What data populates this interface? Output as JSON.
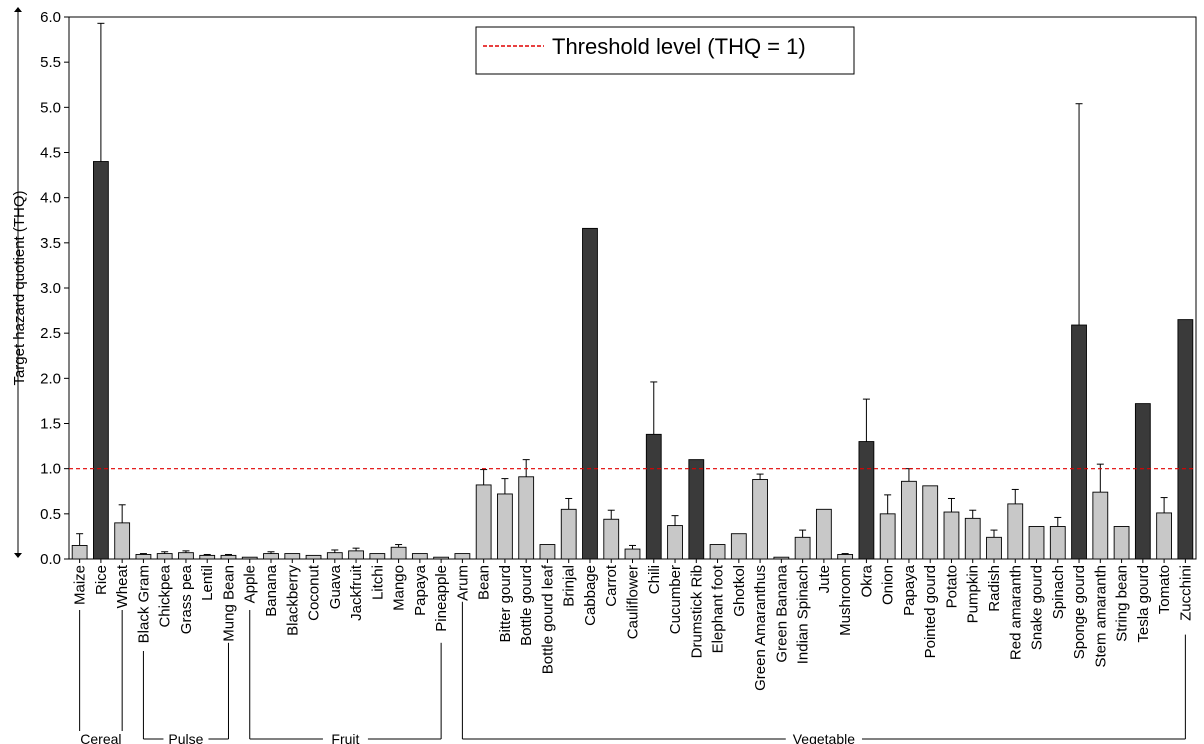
{
  "chart_data": {
    "type": "bar",
    "ylabel": "Target hazard quotient (THQ)",
    "ylim": [
      0,
      6
    ],
    "yticks": [
      "0.0",
      "0.5",
      "1.0",
      "1.5",
      "2.0",
      "2.5",
      "3.0",
      "3.5",
      "4.0",
      "4.5",
      "5.0",
      "5.5",
      "6.0"
    ],
    "threshold": {
      "value": 1.0,
      "label": "Threshold level (THQ = 1)",
      "color": "#e00000"
    },
    "legend_position": "top-center",
    "colors": {
      "above_threshold": "#3a3a3a",
      "below_threshold": "#c8c8c8"
    },
    "categories": [
      "Maize",
      "Rice",
      "Wheat",
      "Black Gram",
      "Chickpea",
      "Grass pea",
      "Lentil",
      "Mung Bean",
      "Apple",
      "Banana",
      "Blackberry",
      "Coconut",
      "Guava",
      "Jackfruit",
      "Litchi",
      "Mango",
      "Papaya",
      "Pineapple",
      "Arum",
      "Bean",
      "Bitter gourd",
      "Bottle gourd",
      "Bottle gourd leaf",
      "Brinjal",
      "Cabbage",
      "Carrot",
      "Cauliflower",
      "Chili",
      "Cucumber",
      "Drumstick Rib",
      "Elephant foot",
      "Ghotkol",
      "Green Amaranthus",
      "Green Banana",
      "Indian Spinach",
      "Jute",
      "Mushroom",
      "Okra",
      "Onion",
      "Papaya",
      "Pointed gourd",
      "Potato",
      "Pumpkin",
      "Radish",
      "Red amaranth",
      "Snake gourd",
      "Spinach",
      "Sponge gourd",
      "Stem amaranth",
      "String bean",
      "Tesla gourd",
      "Tomato",
      "Zucchini"
    ],
    "values": [
      0.15,
      4.4,
      0.4,
      0.05,
      0.06,
      0.07,
      0.04,
      0.04,
      0.02,
      0.06,
      0.06,
      0.04,
      0.07,
      0.09,
      0.06,
      0.13,
      0.06,
      0.02,
      0.06,
      0.82,
      0.72,
      0.91,
      0.16,
      0.55,
      3.66,
      0.44,
      0.11,
      1.38,
      0.37,
      1.1,
      0.16,
      0.28,
      0.88,
      0.02,
      0.24,
      0.55,
      0.05,
      1.3,
      0.5,
      0.86,
      0.81,
      0.52,
      0.45,
      0.24,
      0.61,
      0.36,
      0.36,
      2.59,
      0.74,
      0.36,
      1.72,
      0.51,
      2.65
    ],
    "errors": [
      0.13,
      1.53,
      0.2,
      0.01,
      0.02,
      0.02,
      0.01,
      0.01,
      0,
      0.02,
      0,
      0,
      0.03,
      0.03,
      0,
      0.03,
      0,
      0,
      0,
      0.17,
      0.17,
      0.19,
      0,
      0.12,
      0,
      0.1,
      0.04,
      0.58,
      0.11,
      0,
      0,
      0,
      0.06,
      0,
      0.08,
      0,
      0.01,
      0.47,
      0.21,
      0.14,
      0,
      0.15,
      0.09,
      0.08,
      0.16,
      0,
      0.1,
      2.45,
      0.31,
      0,
      0,
      0.17,
      0
    ],
    "groups": [
      {
        "label": "Cereal",
        "start": 0,
        "end": 2
      },
      {
        "label": "Pulse",
        "start": 3,
        "end": 7
      },
      {
        "label": "Fruit",
        "start": 8,
        "end": 17
      },
      {
        "label": "Vegetable",
        "start": 18,
        "end": 52
      }
    ]
  }
}
